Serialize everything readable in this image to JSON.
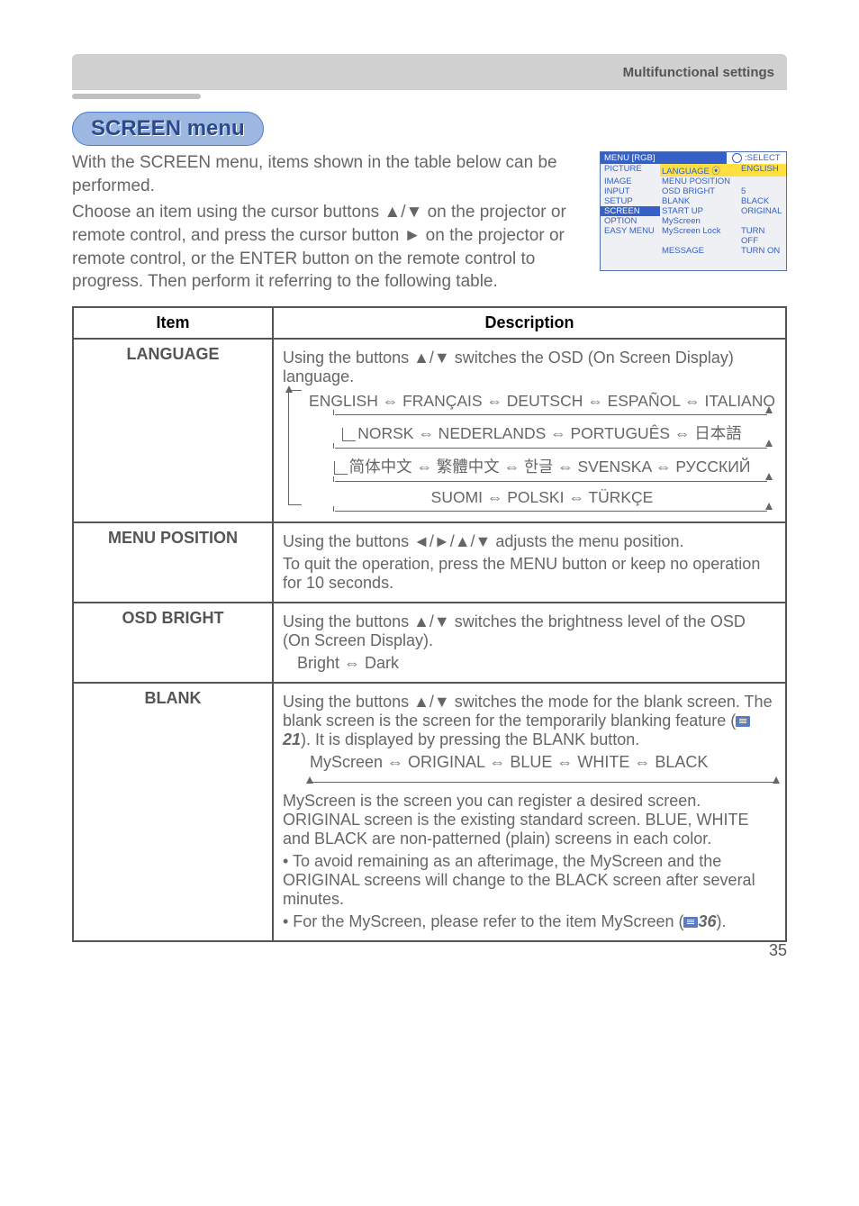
{
  "page": {
    "section_header": "Multifunctional settings",
    "title": "SCREEN menu",
    "intro_1": "With the SCREEN menu, items shown in the table below can be performed.",
    "intro_2": "Choose an item using the cursor buttons ▲/▼ on the projector or remote control, and press the cursor button ► on the projector or remote control, or the ENTER button on the remote control to progress. Then perform it referring to the following table.",
    "page_number": "35"
  },
  "osd": {
    "header_left": "MENU [RGB]",
    "header_right_glyph": "⦿",
    "header_right": ":SELECT",
    "rows": [
      {
        "left": "PICTURE",
        "mid": "LANGUAGE ⦿",
        "right": "ENGLISH",
        "sel": true
      },
      {
        "left": "IMAGE",
        "mid": "MENU POSITION",
        "right": ""
      },
      {
        "left": "INPUT",
        "mid": "OSD BRIGHT",
        "right": "5"
      },
      {
        "left": "SETUP",
        "mid": "BLANK",
        "right": "BLACK"
      },
      {
        "left": "SCREEN",
        "mid": "START UP",
        "right": "ORIGINAL",
        "hl": true
      },
      {
        "left": "OPTION",
        "mid": "MyScreen",
        "right": ""
      },
      {
        "left": "EASY MENU",
        "mid": "MyScreen Lock",
        "right": "TURN OFF"
      },
      {
        "left": "",
        "mid": "MESSAGE",
        "right": "TURN ON"
      }
    ]
  },
  "table": {
    "headers": {
      "item": "Item",
      "description": "Description"
    },
    "rows": {
      "language": {
        "item": "LANGUAGE",
        "line1": "Using the buttons ▲/▼ switches the OSD (On Screen Display) language.",
        "langs": {
          "l1": "ENGLISH ⇔ FRANÇAIS ⇔ DEUTSCH ⇔ ESPAÑOL ⇔ ITALIANO",
          "l2": "NORSK ⇔ NEDERLANDS ⇔ PORTUGUÊS ⇔ 日本語",
          "l3": "简体中文 ⇔ 繁體中文 ⇔ 한글 ⇔ SVENSKA ⇔ РУССКИЙ",
          "l4": "SUOMI ⇔ POLSKI ⇔ TÜRKÇE"
        }
      },
      "menu_position": {
        "item": "MENU POSITION",
        "line1": "Using the buttons ◄/►/▲/▼ adjusts the menu position.",
        "line2": "To quit the operation, press the MENU button or keep no operation for 10 seconds."
      },
      "osd_bright": {
        "item": "OSD BRIGHT",
        "line1": "Using the buttons ▲/▼ switches the brightness level of the OSD (On Screen Display).",
        "line2": "Bright ⇔ Dark"
      },
      "blank": {
        "item": "BLANK",
        "line1": "Using the buttons ▲/▼ switches the mode for the blank screen. The blank screen is the screen for the temporarily blanking feature (",
        "ref1": "21",
        "line1b": "). It is displayed by pressing the BLANK button.",
        "cycle": "MyScreen ⇔ ORIGINAL ⇔ BLUE ⇔ WHITE ⇔ BLACK",
        "line2": "MyScreen is the screen you can register a desired screen. ORIGINAL screen is the existing standard screen. BLUE, WHITE and BLACK are non-patterned (plain) screens in each color.",
        "line3": "• To avoid remaining as an afterimage, the MyScreen and the ORIGINAL screens will change to the BLACK screen after several minutes.",
        "line4a": "• For the MyScreen, please refer to the item MyScreen (",
        "ref2": "36",
        "line4b": ")."
      }
    }
  },
  "colors": {
    "accent": "#3560c8",
    "highlight": "#ffe040",
    "text": "#666666"
  }
}
